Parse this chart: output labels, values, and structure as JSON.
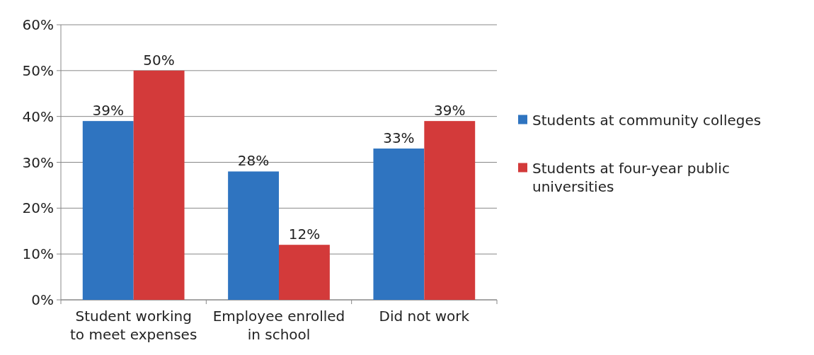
{
  "chart_data": {
    "type": "bar",
    "categories": [
      "Student working to meet expenses",
      "Employee enrolled in school",
      "Did not work"
    ],
    "series": [
      {
        "name": "Students at community colleges",
        "color": "#2f74c0",
        "values": [
          39,
          28,
          33
        ],
        "value_labels": [
          "39%",
          "28%",
          "33%"
        ]
      },
      {
        "name": "Students at four-year public universities",
        "color": "#d33a3a",
        "values": [
          50,
          12,
          39
        ],
        "value_labels": [
          "50%",
          "12%",
          "39%"
        ]
      }
    ],
    "ylim": [
      0,
      60
    ],
    "yticks": [
      {
        "value": 0,
        "label": "0%"
      },
      {
        "value": 10,
        "label": "10%"
      },
      {
        "value": 20,
        "label": "20%"
      },
      {
        "value": 30,
        "label": "30%"
      },
      {
        "value": 40,
        "label": "40%"
      },
      {
        "value": 50,
        "label": "50%"
      },
      {
        "value": 60,
        "label": "60%"
      }
    ],
    "grid": "y",
    "legend": "right"
  }
}
